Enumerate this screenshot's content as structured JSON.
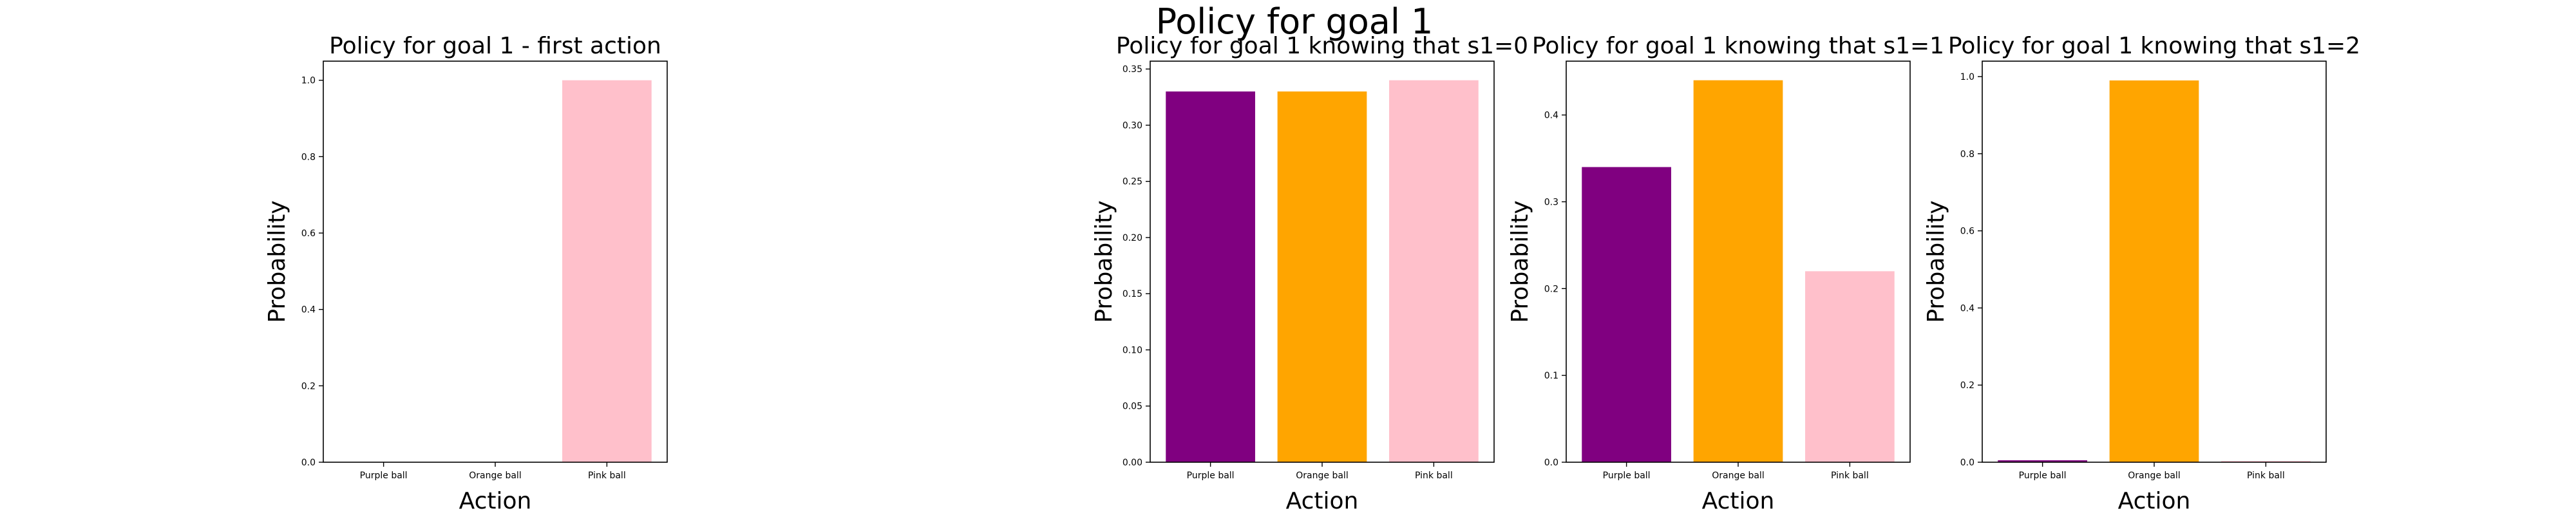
{
  "figure": {
    "suptitle": "Policy for goal 1"
  },
  "chart_data": [
    {
      "type": "bar",
      "title": "Policy for goal 1 - first action",
      "xlabel": "Action",
      "ylabel": "Probability",
      "categories": [
        "Purple ball",
        "Orange ball",
        "Pink ball"
      ],
      "values": [
        0.0,
        0.0,
        1.0
      ],
      "colors": [
        "#800080",
        "#FFA500",
        "#FFC0CB"
      ],
      "ylim": [
        0,
        1.05
      ],
      "yticks": [
        0.0,
        0.2,
        0.4,
        0.6,
        0.8,
        1.0
      ],
      "ytick_labels": [
        "0.0",
        "0.2",
        "0.4",
        "0.6",
        "0.8",
        "1.0"
      ],
      "grid": false,
      "legend": "none"
    },
    {
      "type": "bar",
      "title": "Policy for goal 1 knowing that s1=0",
      "xlabel": "Action",
      "ylabel": "Probability",
      "categories": [
        "Purple ball",
        "Orange ball",
        "Pink ball"
      ],
      "values": [
        0.33,
        0.33,
        0.34
      ],
      "colors": [
        "#800080",
        "#FFA500",
        "#FFC0CB"
      ],
      "ylim": [
        0,
        0.357
      ],
      "yticks": [
        0.0,
        0.05,
        0.1,
        0.15,
        0.2,
        0.25,
        0.3,
        0.35
      ],
      "ytick_labels": [
        "0.00",
        "0.05",
        "0.10",
        "0.15",
        "0.20",
        "0.25",
        "0.30",
        "0.35"
      ],
      "grid": false,
      "legend": "none"
    },
    {
      "type": "bar",
      "title": "Policy for goal 1 knowing that s1=1",
      "xlabel": "Action",
      "ylabel": "Probability",
      "categories": [
        "Purple ball",
        "Orange ball",
        "Pink ball"
      ],
      "values": [
        0.34,
        0.44,
        0.22
      ],
      "colors": [
        "#800080",
        "#FFA500",
        "#FFC0CB"
      ],
      "ylim": [
        0,
        0.462
      ],
      "yticks": [
        0.0,
        0.1,
        0.2,
        0.3,
        0.4
      ],
      "ytick_labels": [
        "0.0",
        "0.1",
        "0.2",
        "0.3",
        "0.4"
      ],
      "grid": false,
      "legend": "none"
    },
    {
      "type": "bar",
      "title": "Policy for goal 1 knowing that s1=2",
      "xlabel": "Action",
      "ylabel": "Probability",
      "categories": [
        "Purple ball",
        "Orange ball",
        "Pink ball"
      ],
      "values": [
        0.005,
        0.99,
        0.003
      ],
      "colors": [
        "#800080",
        "#FFA500",
        "#FFC0CB"
      ],
      "ylim": [
        0,
        1.04
      ],
      "yticks": [
        0.0,
        0.2,
        0.4,
        0.6,
        0.8,
        1.0
      ],
      "ytick_labels": [
        "0.0",
        "0.2",
        "0.4",
        "0.6",
        "0.8",
        "1.0"
      ],
      "grid": false,
      "legend": "none"
    }
  ]
}
